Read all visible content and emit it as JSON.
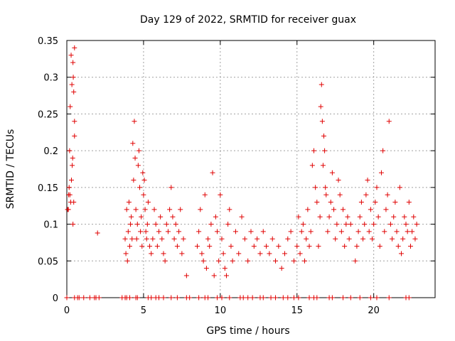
{
  "chart_data": {
    "type": "scatter",
    "title": "Day 129 of 2022, SRMTID for receiver guax",
    "xlabel": "GPS time / hours",
    "ylabel": "SRMTID / TECUs",
    "xlim": [
      0,
      24
    ],
    "ylim": [
      0,
      0.35
    ],
    "x_ticks": [
      0,
      5,
      10,
      15,
      20
    ],
    "x_tick_labels": [
      "0",
      "5",
      "10",
      "15",
      "20"
    ],
    "y_ticks": [
      0,
      0.05,
      0.1,
      0.15,
      0.2,
      0.25,
      0.3,
      0.35
    ],
    "y_tick_labels": [
      "0",
      "0.05",
      "0.1",
      "0.15",
      "0.2",
      "0.25",
      "0.3",
      "0.35"
    ],
    "grid": true,
    "marker": "plus",
    "series": [
      {
        "name": "SRMTID",
        "color": "#e00000",
        "x": [
          0.1,
          0.15,
          0.2,
          0.25,
          0.3,
          0.35,
          0.4,
          0.42,
          0.45,
          0.5,
          0.5,
          0.05,
          0.12,
          0.18,
          0.22,
          0.28,
          0.33,
          0.38,
          0.4,
          0.45,
          0.5,
          2.0,
          3.8,
          3.85,
          3.9,
          3.95,
          4.0,
          4.05,
          4.1,
          4.15,
          4.2,
          4.25,
          4.3,
          4.35,
          4.4,
          4.45,
          4.5,
          4.55,
          4.6,
          4.65,
          4.7,
          4.75,
          4.8,
          4.85,
          4.9,
          4.95,
          5.0,
          5.05,
          5.1,
          5.15,
          5.2,
          5.25,
          5.3,
          5.4,
          5.5,
          5.6,
          5.7,
          5.8,
          5.9,
          6.0,
          6.1,
          6.2,
          6.3,
          6.4,
          6.5,
          6.6,
          6.7,
          6.8,
          6.9,
          7.0,
          7.1,
          7.2,
          7.3,
          7.4,
          7.5,
          7.6,
          7.8,
          8.5,
          8.6,
          8.7,
          8.8,
          8.9,
          9.0,
          9.1,
          9.2,
          9.3,
          9.4,
          9.5,
          9.6,
          9.7,
          9.8,
          9.9,
          10.0,
          10.1,
          10.2,
          10.3,
          10.4,
          10.5,
          10.6,
          10.7,
          10.8,
          11.0,
          11.2,
          11.4,
          11.6,
          11.8,
          12.0,
          12.2,
          12.4,
          12.6,
          12.8,
          13.0,
          13.2,
          13.4,
          13.6,
          13.8,
          14.0,
          14.2,
          14.4,
          14.6,
          14.8,
          15.0,
          15.1,
          15.2,
          15.3,
          15.4,
          15.5,
          15.6,
          15.7,
          15.8,
          15.9,
          16.0,
          16.1,
          16.2,
          16.3,
          16.4,
          16.5,
          16.55,
          16.6,
          16.65,
          16.7,
          16.75,
          16.8,
          16.85,
          16.9,
          17.0,
          17.1,
          17.2,
          17.3,
          17.4,
          17.5,
          17.6,
          17.7,
          17.8,
          17.9,
          18.0,
          18.1,
          18.2,
          18.3,
          18.4,
          18.5,
          18.8,
          18.9,
          19.0,
          19.1,
          19.2,
          19.3,
          19.4,
          19.5,
          19.6,
          19.7,
          19.8,
          19.9,
          20.0,
          20.1,
          20.2,
          20.3,
          20.4,
          20.5,
          20.6,
          20.7,
          20.8,
          20.9,
          21.0,
          21.1,
          21.2,
          21.3,
          21.4,
          21.5,
          21.6,
          21.7,
          21.8,
          21.9,
          22.0,
          22.1,
          22.2,
          22.3,
          22.4,
          22.5,
          22.6,
          22.7,
          22.8,
          0.0,
          0.5,
          0.7,
          0.8,
          1.1,
          1.5,
          1.8,
          1.9,
          2.1,
          3.6,
          3.8,
          3.9,
          4.1,
          4.5,
          4.6,
          5.3,
          5.5,
          5.8,
          6.0,
          6.3,
          6.8,
          7.2,
          7.8,
          8.0,
          8.6,
          9.0,
          9.2,
          9.8,
          10.1,
          10.6,
          11.3,
          11.5,
          11.8,
          12.1,
          12.6,
          12.8,
          13.3,
          13.6,
          14.1,
          14.4,
          14.8,
          15.1,
          15.8,
          16.1,
          16.3,
          17.1,
          17.3,
          18.0,
          18.5,
          19.1,
          19.8,
          20.2,
          21.0,
          22.1,
          22.3
        ],
        "y": [
          0.12,
          0.15,
          0.14,
          0.13,
          0.16,
          0.18,
          0.32,
          0.3,
          0.28,
          0.22,
          0.24,
          0.12,
          0.14,
          0.2,
          0.26,
          0.33,
          0.29,
          0.19,
          0.1,
          0.13,
          0.34,
          0.088,
          0.08,
          0.06,
          0.12,
          0.05,
          0.09,
          0.13,
          0.07,
          0.1,
          0.11,
          0.08,
          0.21,
          0.16,
          0.24,
          0.19,
          0.12,
          0.08,
          0.1,
          0.18,
          0.2,
          0.15,
          0.09,
          0.11,
          0.07,
          0.17,
          0.14,
          0.16,
          0.12,
          0.09,
          0.08,
          0.1,
          0.13,
          0.07,
          0.06,
          0.08,
          0.12,
          0.1,
          0.07,
          0.09,
          0.11,
          0.08,
          0.06,
          0.05,
          0.1,
          0.09,
          0.12,
          0.15,
          0.11,
          0.08,
          0.1,
          0.07,
          0.09,
          0.12,
          0.06,
          0.08,
          0.03,
          0.07,
          0.09,
          0.12,
          0.06,
          0.05,
          0.14,
          0.04,
          0.08,
          0.07,
          0.1,
          0.17,
          0.03,
          0.11,
          0.09,
          0.05,
          0.14,
          0.08,
          0.06,
          0.04,
          0.03,
          0.1,
          0.12,
          0.07,
          0.05,
          0.09,
          0.06,
          0.11,
          0.08,
          0.05,
          0.09,
          0.07,
          0.08,
          0.06,
          0.09,
          0.07,
          0.06,
          0.08,
          0.05,
          0.07,
          0.04,
          0.06,
          0.08,
          0.09,
          0.05,
          0.07,
          0.11,
          0.06,
          0.09,
          0.1,
          0.05,
          0.08,
          0.12,
          0.07,
          0.09,
          0.18,
          0.2,
          0.15,
          0.13,
          0.07,
          0.11,
          0.26,
          0.29,
          0.24,
          0.18,
          0.22,
          0.2,
          0.15,
          0.14,
          0.09,
          0.11,
          0.13,
          0.17,
          0.12,
          0.08,
          0.1,
          0.16,
          0.14,
          0.09,
          0.12,
          0.07,
          0.1,
          0.11,
          0.08,
          0.1,
          0.05,
          0.07,
          0.09,
          0.11,
          0.13,
          0.08,
          0.1,
          0.14,
          0.16,
          0.09,
          0.12,
          0.08,
          0.1,
          0.13,
          0.15,
          0.11,
          0.07,
          0.17,
          0.2,
          0.09,
          0.12,
          0.14,
          0.24,
          0.1,
          0.08,
          0.11,
          0.13,
          0.09,
          0.07,
          0.15,
          0.06,
          0.08,
          0.11,
          0.1,
          0.09,
          0.13,
          0.07,
          0.09,
          0.11,
          0.08,
          0.1,
          0,
          0,
          0,
          0,
          0,
          0,
          0,
          0,
          0,
          0,
          0,
          0,
          0,
          0,
          0,
          0,
          0,
          0,
          0,
          0,
          0,
          0,
          0,
          0,
          0,
          0,
          0,
          0,
          0,
          0,
          0,
          0,
          0,
          0,
          0,
          0,
          0,
          0,
          0,
          0,
          0,
          0,
          0,
          0,
          0,
          0,
          0,
          0,
          0,
          0,
          0,
          0,
          0,
          0,
          0
        ]
      }
    ]
  }
}
